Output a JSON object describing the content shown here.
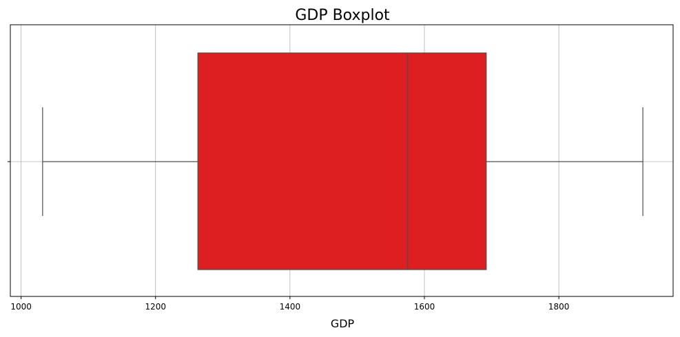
{
  "chart_data": {
    "type": "boxplot",
    "title": "GDP Boxplot",
    "xlabel": "GDP",
    "ylabel": "",
    "xlim": [
      984,
      1970
    ],
    "xticks": [
      1000,
      1200,
      1400,
      1600,
      1800
    ],
    "grid": true,
    "orientation": "horizontal",
    "box": {
      "whisker_low": 1032,
      "q1": 1263,
      "median": 1575,
      "q3": 1692,
      "whisker_high": 1925
    },
    "colors": {
      "box_fill": "#de1f22",
      "lines": "#4d4d4d",
      "grid": "#b0b0b0"
    }
  }
}
